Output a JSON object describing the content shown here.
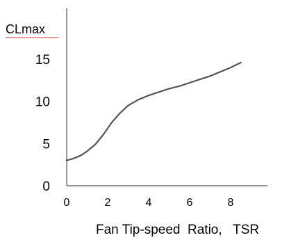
{
  "chart_data": {
    "type": "line",
    "title": "",
    "xlabel": "Fan Tip-speed  Ratio,   TSR",
    "ylabel": "CLmax",
    "xlim": [
      0,
      10
    ],
    "ylim": [
      0,
      17
    ],
    "x_ticks": [
      0,
      2,
      4,
      6,
      8
    ],
    "y_ticks": [
      0,
      5,
      10,
      15
    ],
    "x_tick_labels": [
      "0",
      "2",
      "4",
      "6",
      "8"
    ],
    "y_tick_labels": [
      "0",
      "5",
      "10",
      "15"
    ],
    "grid": false,
    "legend": "none",
    "series": [
      {
        "x": [
          0,
          0.3,
          0.7,
          1.0,
          1.4,
          1.8,
          2.2,
          2.6,
          3.0,
          3.5,
          4.0,
          4.5,
          5.0,
          5.5,
          6.0,
          6.5,
          7.0,
          7.5,
          8.0,
          8.5
        ],
        "y": [
          3.0,
          3.2,
          3.6,
          4.1,
          4.9,
          6.1,
          7.5,
          8.6,
          9.5,
          10.2,
          10.7,
          11.1,
          11.5,
          11.8,
          12.2,
          12.6,
          13.0,
          13.5,
          14.0,
          14.6
        ]
      }
    ],
    "colors": {
      "line": "#555555",
      "axis": "#555555",
      "spellcheck_underline": "#d62a2a"
    }
  }
}
